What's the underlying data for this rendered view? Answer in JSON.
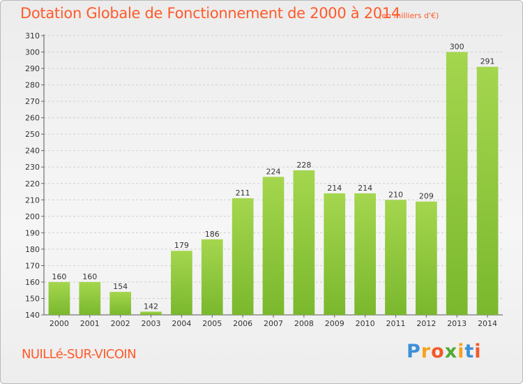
{
  "chart_data": {
    "type": "bar",
    "title": "Dotation Globale de Fonctionnement de 2000 à 2014",
    "unit_note": "(en milliers d'€)",
    "categories": [
      "2000",
      "2001",
      "2002",
      "2003",
      "2004",
      "2005",
      "2006",
      "2007",
      "2008",
      "2009",
      "2010",
      "2011",
      "2012",
      "2013",
      "2014"
    ],
    "values": [
      160,
      160,
      154,
      142,
      179,
      186,
      211,
      224,
      228,
      214,
      214,
      210,
      209,
      300,
      291
    ],
    "xlabel": "",
    "ylabel": "",
    "ylim": [
      140,
      310
    ],
    "yticks": [
      140,
      150,
      160,
      170,
      180,
      190,
      200,
      210,
      220,
      230,
      240,
      250,
      260,
      270,
      280,
      290,
      300,
      310
    ],
    "grid": true,
    "bar_color": "#7ab82d",
    "bar_color_light": "#a4d64e"
  },
  "footer": {
    "commune": "NUILLé-SUR-VICOIN",
    "logo_letters": [
      "P",
      "r",
      "o",
      "x",
      "i",
      "t",
      "i"
    ],
    "logo_colors": [
      "#3d8fd9",
      "#f7a21b",
      "#f05a28",
      "#52a935",
      "#f7a21b",
      "#3d8fd9",
      "#f05a28"
    ]
  }
}
